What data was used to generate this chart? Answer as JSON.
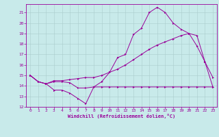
{
  "xlabel": "Windchill (Refroidissement éolien,°C)",
  "bg_color": "#c8eaea",
  "line_color": "#990099",
  "grid_color": "#aacccc",
  "xlim": [
    -0.5,
    23.5
  ],
  "ylim": [
    12,
    21.8
  ],
  "xticks": [
    0,
    1,
    2,
    3,
    4,
    5,
    6,
    7,
    8,
    9,
    10,
    11,
    12,
    13,
    14,
    15,
    16,
    17,
    18,
    19,
    20,
    21,
    22,
    23
  ],
  "yticks": [
    12,
    13,
    14,
    15,
    16,
    17,
    18,
    19,
    20,
    21
  ],
  "line1_x": [
    0,
    1,
    2,
    3,
    4,
    5,
    6,
    7,
    8,
    9,
    10,
    11,
    12,
    13,
    14,
    15,
    16,
    17,
    18,
    19,
    20,
    21,
    22,
    23
  ],
  "line1_y": [
    15.0,
    14.4,
    14.2,
    13.6,
    13.6,
    13.3,
    12.8,
    12.3,
    13.9,
    14.4,
    15.3,
    16.7,
    17.0,
    18.9,
    19.5,
    21.0,
    21.5,
    21.0,
    20.0,
    19.4,
    19.0,
    17.8,
    16.3,
    14.8
  ],
  "line2_x": [
    0,
    1,
    2,
    3,
    4,
    5,
    6,
    7,
    8,
    9,
    10,
    11,
    12,
    13,
    14,
    15,
    16,
    17,
    18,
    19,
    20,
    21,
    22,
    23
  ],
  "line2_y": [
    15.0,
    14.4,
    14.2,
    14.4,
    14.4,
    14.3,
    13.8,
    13.8,
    13.9,
    13.9,
    13.9,
    13.9,
    13.9,
    13.9,
    13.9,
    13.9,
    13.9,
    13.9,
    13.9,
    13.9,
    13.9,
    13.9,
    13.9,
    13.9
  ],
  "line3_x": [
    0,
    1,
    2,
    3,
    4,
    5,
    6,
    7,
    8,
    9,
    10,
    11,
    12,
    13,
    14,
    15,
    16,
    17,
    18,
    19,
    20,
    21,
    22,
    23
  ],
  "line3_y": [
    15.0,
    14.4,
    14.2,
    14.5,
    14.5,
    14.6,
    14.7,
    14.8,
    14.8,
    15.0,
    15.3,
    15.6,
    16.0,
    16.5,
    17.0,
    17.5,
    17.9,
    18.2,
    18.5,
    18.8,
    19.0,
    18.8,
    16.3,
    13.9
  ]
}
